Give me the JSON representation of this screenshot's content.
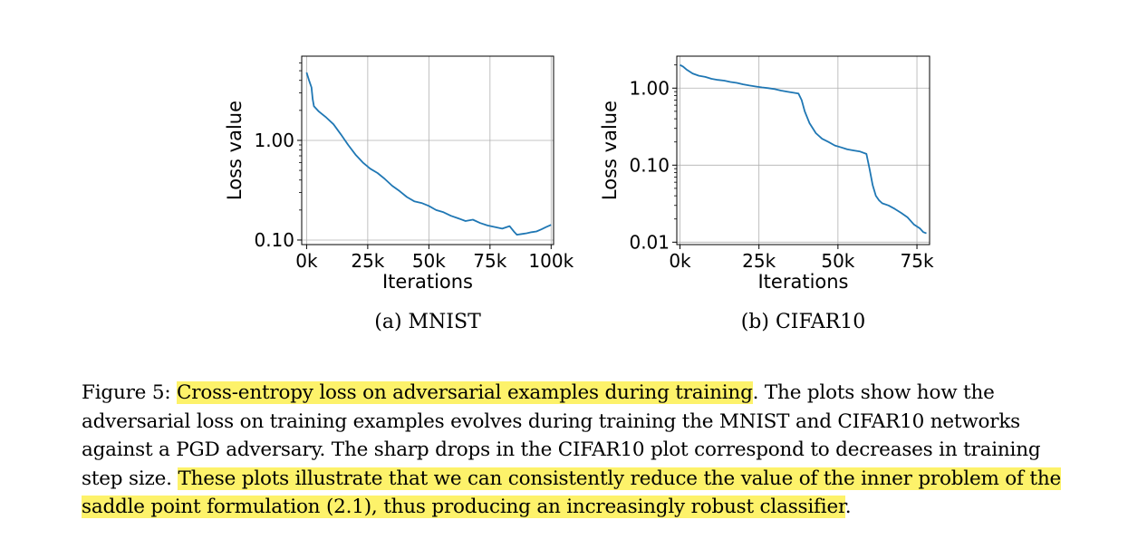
{
  "chart_data": [
    {
      "type": "line",
      "subcaption": "(a) MNIST",
      "xlabel": "Iterations",
      "ylabel": "Loss value",
      "yscale": "log",
      "grid": true,
      "xlim": [
        -2000,
        101000
      ],
      "ylim": [
        0.09,
        7
      ],
      "x_ticks": [
        0,
        25000,
        50000,
        75000,
        100000
      ],
      "x_tick_labels": [
        "0k",
        "25k",
        "50k",
        "75k",
        "100k"
      ],
      "y_ticks": [
        0.1,
        1.0
      ],
      "y_tick_labels": [
        "0.10",
        "1.00"
      ],
      "color": "#1f77b4",
      "x": [
        0,
        1000,
        2000,
        2500,
        3000,
        5000,
        8000,
        11000,
        14000,
        17000,
        20000,
        23000,
        26000,
        29000,
        32000,
        35000,
        38000,
        41000,
        44000,
        47000,
        50000,
        53000,
        56000,
        59000,
        62000,
        65000,
        68000,
        71000,
        74000,
        77000,
        80000,
        83000,
        85000,
        86000,
        88000,
        90000,
        92000,
        94000,
        96000,
        98000,
        100000
      ],
      "y": [
        4.8,
        4.0,
        3.4,
        2.6,
        2.2,
        1.95,
        1.7,
        1.45,
        1.15,
        0.9,
        0.72,
        0.6,
        0.52,
        0.47,
        0.41,
        0.35,
        0.31,
        0.27,
        0.245,
        0.235,
        0.22,
        0.2,
        0.19,
        0.175,
        0.165,
        0.155,
        0.16,
        0.148,
        0.14,
        0.135,
        0.13,
        0.138,
        0.12,
        0.113,
        0.115,
        0.117,
        0.12,
        0.122,
        0.128,
        0.135,
        0.142
      ]
    },
    {
      "type": "line",
      "subcaption": "(b) CIFAR10",
      "xlabel": "Iterations",
      "ylabel": "Loss value",
      "yscale": "log",
      "grid": true,
      "xlim": [
        -1000,
        79000
      ],
      "ylim": [
        0.0093,
        2.6
      ],
      "x_ticks": [
        0,
        25000,
        50000,
        75000
      ],
      "x_tick_labels": [
        "0k",
        "25k",
        "50k",
        "75k"
      ],
      "y_ticks": [
        0.01,
        0.1,
        1.0
      ],
      "y_tick_labels": [
        "0.01",
        "0.10",
        "1.00"
      ],
      "color": "#1f77b4",
      "x": [
        0,
        1000,
        2000,
        4000,
        6000,
        8000,
        10000,
        12000,
        14000,
        16000,
        18000,
        20000,
        22000,
        24000,
        26000,
        28000,
        30000,
        32000,
        34000,
        36000,
        37500,
        38500,
        39500,
        41000,
        43000,
        45000,
        47000,
        49000,
        51000,
        53000,
        55000,
        57000,
        59000,
        60000,
        61000,
        62000,
        63000,
        64000,
        66000,
        68000,
        70000,
        72000,
        74000,
        76000,
        77000,
        78000
      ],
      "y": [
        2.0,
        1.9,
        1.75,
        1.55,
        1.45,
        1.4,
        1.32,
        1.28,
        1.25,
        1.2,
        1.17,
        1.12,
        1.08,
        1.05,
        1.02,
        1.0,
        0.97,
        0.93,
        0.9,
        0.87,
        0.85,
        0.7,
        0.5,
        0.35,
        0.26,
        0.22,
        0.2,
        0.18,
        0.17,
        0.16,
        0.155,
        0.15,
        0.14,
        0.09,
        0.055,
        0.04,
        0.035,
        0.032,
        0.03,
        0.027,
        0.024,
        0.021,
        0.017,
        0.015,
        0.0135,
        0.013
      ]
    }
  ],
  "caption": {
    "label": "Figure 5: ",
    "highlight1": "Cross-entropy loss on adversarial examples during training",
    "text1": ". The plots show how the adversarial loss on training examples evolves during training the MNIST and CIFAR10 networks against a PGD adversary. The sharp drops in the CIFAR10 plot correspond to decreases in training step size. ",
    "highlight2": "These plots illustrate that we can consistently reduce the value of the inner problem of the saddle point formulation (2.1), thus producing an increasingly robust classifier",
    "text2": "."
  }
}
